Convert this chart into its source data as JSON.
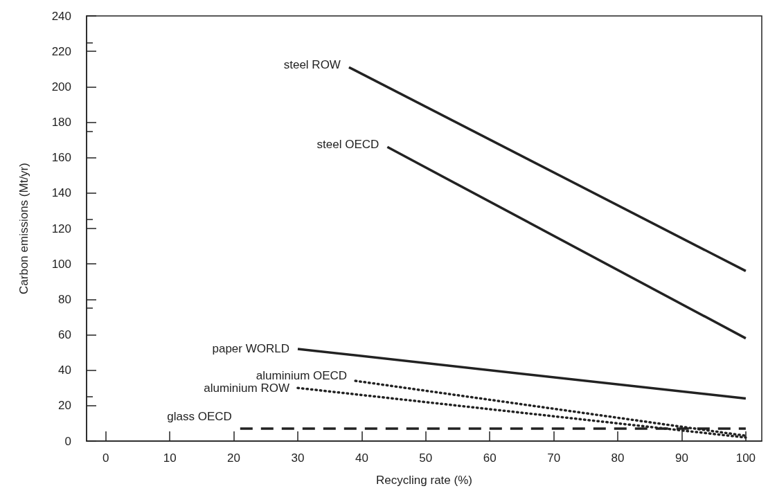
{
  "chart_data": {
    "type": "line",
    "xlabel": "Recycling rate (%)",
    "ylabel": "Carbon emissions (Mt/yr)",
    "xlim": [
      -3,
      102.5
    ],
    "ylim": [
      0,
      240
    ],
    "xticks": [
      0,
      10,
      20,
      30,
      40,
      50,
      60,
      70,
      80,
      90,
      100
    ],
    "yticks": [
      0,
      20,
      40,
      60,
      80,
      100,
      120,
      140,
      160,
      180,
      200,
      220,
      240
    ],
    "grid": false,
    "legend": false,
    "marker": "none",
    "series": [
      {
        "name": "steel ROW",
        "color": "#222222",
        "line_style": "solid",
        "x": [
          38,
          100
        ],
        "values": [
          211,
          96
        ]
      },
      {
        "name": "steel OECD",
        "color": "#222222",
        "line_style": "solid",
        "x": [
          44,
          100
        ],
        "values": [
          166,
          58
        ]
      },
      {
        "name": "paper WORLD",
        "color": "#222222",
        "line_style": "solid",
        "x": [
          30,
          100
        ],
        "values": [
          52,
          24
        ]
      },
      {
        "name": "aluminium OECD",
        "color": "#222222",
        "line_style": "dotted",
        "x": [
          39,
          100
        ],
        "values": [
          34,
          3
        ]
      },
      {
        "name": "aluminium ROW",
        "color": "#222222",
        "line_style": "dotted",
        "x": [
          30,
          100
        ],
        "values": [
          30,
          2
        ]
      },
      {
        "name": "glass OECD",
        "color": "#222222",
        "line_style": "dashed",
        "x": [
          21,
          100
        ],
        "values": [
          7,
          7
        ]
      }
    ]
  }
}
